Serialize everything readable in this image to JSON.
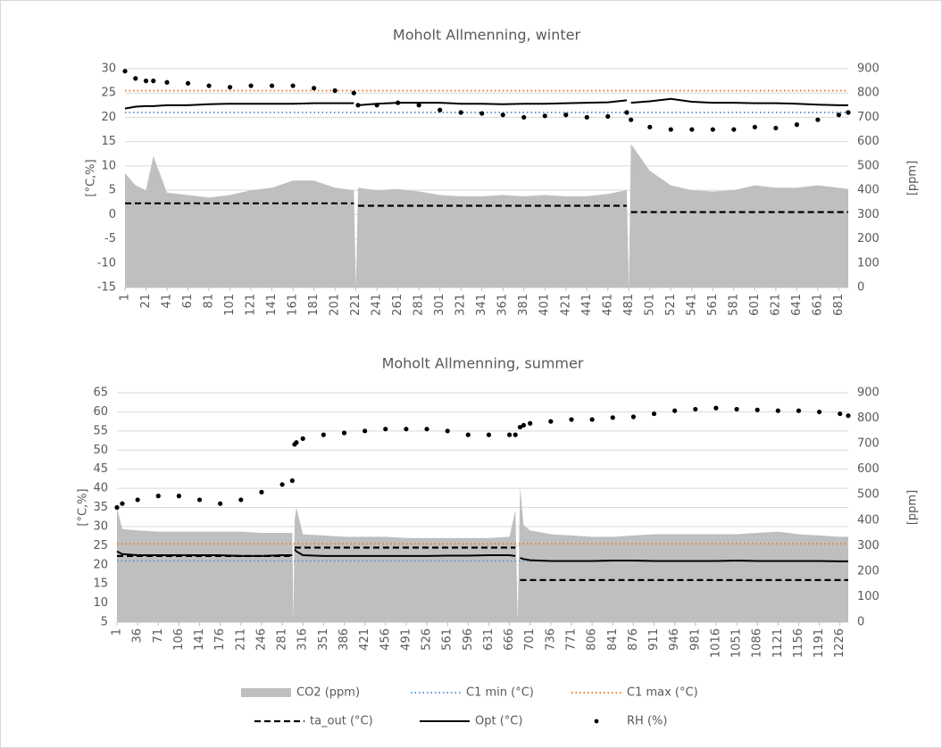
{
  "chart_data": [
    {
      "type": "line",
      "title": "Moholt Allmenning, winter",
      "y_label": "[°C,%]",
      "y2_label": "[ppm]",
      "xlim": [
        1,
        690
      ],
      "xticks": [
        1,
        21,
        41,
        61,
        81,
        101,
        121,
        141,
        161,
        181,
        201,
        221,
        241,
        261,
        281,
        301,
        321,
        341,
        361,
        381,
        401,
        421,
        441,
        461,
        481,
        501,
        521,
        541,
        561,
        581,
        601,
        621,
        641,
        661,
        681
      ],
      "ylim": [
        -15,
        30
      ],
      "yticks": [
        -15,
        -10,
        -5,
        0,
        5,
        10,
        15,
        20,
        25,
        30
      ],
      "y2lim": [
        0,
        900
      ],
      "y2ticks": [
        0,
        100,
        200,
        300,
        400,
        500,
        600,
        700,
        800,
        900
      ],
      "grid": true,
      "x": [
        1,
        11,
        21,
        28,
        41,
        61,
        81,
        101,
        121,
        141,
        161,
        181,
        201,
        219,
        221,
        223,
        241,
        261,
        281,
        301,
        321,
        341,
        361,
        381,
        401,
        421,
        441,
        461,
        479,
        481,
        483,
        501,
        521,
        541,
        561,
        581,
        601,
        621,
        641,
        661,
        681,
        690
      ],
      "series": [
        {
          "name": "CO2 (ppm)",
          "style": "area",
          "color": "#bfbfbf",
          "axis": "y2",
          "values": [
            470,
            420,
            400,
            540,
            390,
            380,
            370,
            380,
            400,
            410,
            440,
            440,
            410,
            400,
            0,
            410,
            400,
            405,
            395,
            380,
            375,
            375,
            380,
            375,
            380,
            375,
            375,
            385,
            400,
            0,
            590,
            480,
            420,
            400,
            395,
            400,
            420,
            410,
            410,
            420,
            410,
            405
          ]
        },
        {
          "name": "C1 min (°C)",
          "style": "dotted",
          "color": "#5b9bd5",
          "values": [
            21,
            21,
            21,
            21,
            21,
            21,
            21,
            21,
            21,
            21,
            21,
            21,
            21,
            21,
            21,
            21,
            21,
            21,
            21,
            21,
            21,
            21,
            21,
            21,
            21,
            21,
            21,
            21,
            21,
            21,
            21,
            21,
            21,
            21,
            21,
            21,
            21,
            21,
            21,
            21,
            21,
            21
          ]
        },
        {
          "name": "C1 max (°C)",
          "style": "dotted",
          "color": "#ed7d31",
          "values": [
            25.5,
            25.5,
            25.5,
            25.5,
            25.5,
            25.5,
            25.5,
            25.5,
            25.5,
            25.5,
            25.5,
            25.5,
            25.5,
            25.5,
            25.5,
            25.5,
            25.5,
            25.5,
            25.5,
            25.5,
            25.5,
            25.5,
            25.5,
            25.5,
            25.5,
            25.5,
            25.5,
            25.5,
            25.5,
            25.5,
            25.5,
            25.5,
            25.5,
            25.5,
            25.5,
            25.5,
            25.5,
            25.5,
            25.5,
            25.5,
            25.5,
            25.5
          ]
        },
        {
          "name": "ta_out (°C)",
          "style": "dashed",
          "color": "#000000",
          "values": [
            2.3,
            2.3,
            2.3,
            2.3,
            2.3,
            2.3,
            2.3,
            2.3,
            2.3,
            2.3,
            2.3,
            2.3,
            2.3,
            2.3,
            null,
            1.8,
            1.8,
            1.8,
            1.8,
            1.8,
            1.8,
            1.8,
            1.8,
            1.8,
            1.8,
            1.8,
            1.8,
            1.8,
            1.8,
            null,
            0.5,
            0.5,
            0.5,
            0.5,
            0.5,
            0.5,
            0.5,
            0.5,
            0.5,
            0.5,
            0.5,
            0.5
          ]
        },
        {
          "name": "Opt (°C)",
          "style": "solid",
          "color": "#000000",
          "values": [
            21.8,
            22.2,
            22.3,
            22.3,
            22.5,
            22.5,
            22.7,
            22.8,
            22.8,
            22.8,
            22.8,
            22.9,
            22.9,
            22.9,
            null,
            22.5,
            22.8,
            23,
            23,
            23,
            22.8,
            22.8,
            22.7,
            22.8,
            22.8,
            22.9,
            23,
            23.1,
            23.5,
            null,
            23,
            23.3,
            23.8,
            23.2,
            23,
            23,
            22.9,
            22.9,
            22.8,
            22.6,
            22.5,
            22.5
          ]
        },
        {
          "name": "RH (%)",
          "style": "dots",
          "color": "#000000",
          "values": [
            29.5,
            28,
            27.5,
            27.5,
            27.2,
            27,
            26.5,
            26.2,
            26.5,
            26.5,
            26.5,
            26,
            25.5,
            25,
            null,
            22.5,
            22.5,
            23,
            22.5,
            21.5,
            21,
            20.8,
            20.5,
            20,
            20.3,
            20.5,
            20,
            20.2,
            21,
            null,
            19.5,
            18,
            17.5,
            17.5,
            17.5,
            17.5,
            18,
            17.8,
            18.5,
            19.5,
            20.5,
            21
          ]
        }
      ]
    },
    {
      "type": "line",
      "title": "Moholt Allmenning, summer",
      "y_label": "[°C,%]",
      "y2_label": "[ppm]",
      "xlim": [
        1,
        1240
      ],
      "xticks": [
        1,
        36,
        71,
        106,
        141,
        176,
        211,
        246,
        281,
        316,
        351,
        386,
        421,
        456,
        491,
        526,
        561,
        596,
        631,
        666,
        701,
        736,
        771,
        806,
        841,
        876,
        911,
        946,
        981,
        1016,
        1051,
        1086,
        1121,
        1156,
        1191,
        1226
      ],
      "ylim": [
        5,
        65
      ],
      "yticks": [
        5,
        10,
        15,
        20,
        25,
        30,
        35,
        40,
        45,
        50,
        55,
        60,
        65
      ],
      "y2lim": [
        0,
        900
      ],
      "y2ticks": [
        0,
        100,
        200,
        300,
        400,
        500,
        600,
        700,
        800,
        900
      ],
      "grid": true,
      "x": [
        1,
        10,
        36,
        71,
        106,
        141,
        176,
        211,
        246,
        281,
        298,
        300,
        302,
        305,
        316,
        351,
        386,
        421,
        456,
        491,
        526,
        561,
        596,
        631,
        666,
        676,
        680,
        684,
        690,
        701,
        736,
        771,
        806,
        841,
        876,
        911,
        946,
        981,
        1016,
        1051,
        1086,
        1121,
        1156,
        1191,
        1226,
        1240
      ],
      "series": [
        {
          "style": "area",
          "color": "#bfbfbf",
          "axis": "y2",
          "values": [
            450,
            365,
            360,
            355,
            355,
            355,
            355,
            355,
            350,
            350,
            350,
            0,
            400,
            450,
            345,
            340,
            335,
            335,
            335,
            330,
            330,
            330,
            330,
            330,
            335,
            440,
            0,
            530,
            380,
            360,
            345,
            340,
            335,
            335,
            340,
            345,
            345,
            345,
            345,
            345,
            350,
            355,
            345,
            340,
            335,
            335
          ]
        },
        {
          "style": "dotted",
          "color": "#5b9bd5",
          "values": [
            21,
            21,
            21,
            21,
            21,
            21,
            21,
            21,
            21,
            21,
            21,
            21,
            21,
            21,
            21,
            21,
            21,
            21,
            21,
            21,
            21,
            21,
            21,
            21,
            21,
            21,
            21,
            21,
            21,
            21,
            21,
            21,
            21,
            21,
            21,
            21,
            21,
            21,
            21,
            21,
            21,
            21,
            21,
            21,
            21,
            21
          ]
        },
        {
          "style": "dotted",
          "color": "#ed7d31",
          "values": [
            25.5,
            25.5,
            25.5,
            25.5,
            25.5,
            25.5,
            25.5,
            25.5,
            25.5,
            25.5,
            25.5,
            25.5,
            25.5,
            25.5,
            25.5,
            25.5,
            25.5,
            25.5,
            25.5,
            25.5,
            25.5,
            25.5,
            25.5,
            25.5,
            25.5,
            25.5,
            25.5,
            25.5,
            25.5,
            25.5,
            25.5,
            25.5,
            25.5,
            25.5,
            25.5,
            25.5,
            25.5,
            25.5,
            25.5,
            25.5,
            25.5,
            25.5,
            25.5,
            25.5,
            25.5,
            25.5
          ]
        },
        {
          "style": "dashed",
          "color": "#000000",
          "values": [
            22.3,
            22.3,
            22.3,
            22.3,
            22.3,
            22.3,
            22.3,
            22.3,
            22.3,
            22.3,
            22.3,
            null,
            24.5,
            24.5,
            24.5,
            24.5,
            24.5,
            24.5,
            24.5,
            24.5,
            24.5,
            24.5,
            24.5,
            24.5,
            24.5,
            24.5,
            null,
            16,
            16,
            16,
            16,
            16,
            16,
            16,
            16,
            16,
            16,
            16,
            16,
            16,
            16,
            16,
            16,
            16,
            16,
            16
          ]
        },
        {
          "style": "solid",
          "color": "#000000",
          "values": [
            23.5,
            22.8,
            22.5,
            22.5,
            22.5,
            22.5,
            22.5,
            22.3,
            22.3,
            22.5,
            22.5,
            null,
            24,
            23.5,
            22.5,
            22.3,
            22.3,
            22.3,
            22.3,
            22.3,
            22.3,
            22.4,
            22.4,
            22.5,
            22.5,
            22.3,
            null,
            21.8,
            21.5,
            21.2,
            21,
            21,
            21,
            21.1,
            21.1,
            21,
            21,
            21,
            21,
            21.1,
            21,
            21,
            21,
            21,
            20.9,
            20.9
          ]
        },
        {
          "style": "dots",
          "color": "#000000",
          "values": [
            35,
            36,
            37,
            38,
            38,
            37,
            36,
            37,
            39,
            41,
            42,
            null,
            51.5,
            52,
            53,
            54,
            54.5,
            55,
            55.5,
            55.5,
            55.5,
            55,
            54,
            54,
            54,
            54,
            null,
            56,
            56.5,
            57,
            57.5,
            58,
            58,
            58.5,
            58.7,
            59.5,
            60.3,
            60.7,
            61,
            60.7,
            60.5,
            60.3,
            60.3,
            60,
            59.5,
            59
          ]
        }
      ]
    }
  ]
}
